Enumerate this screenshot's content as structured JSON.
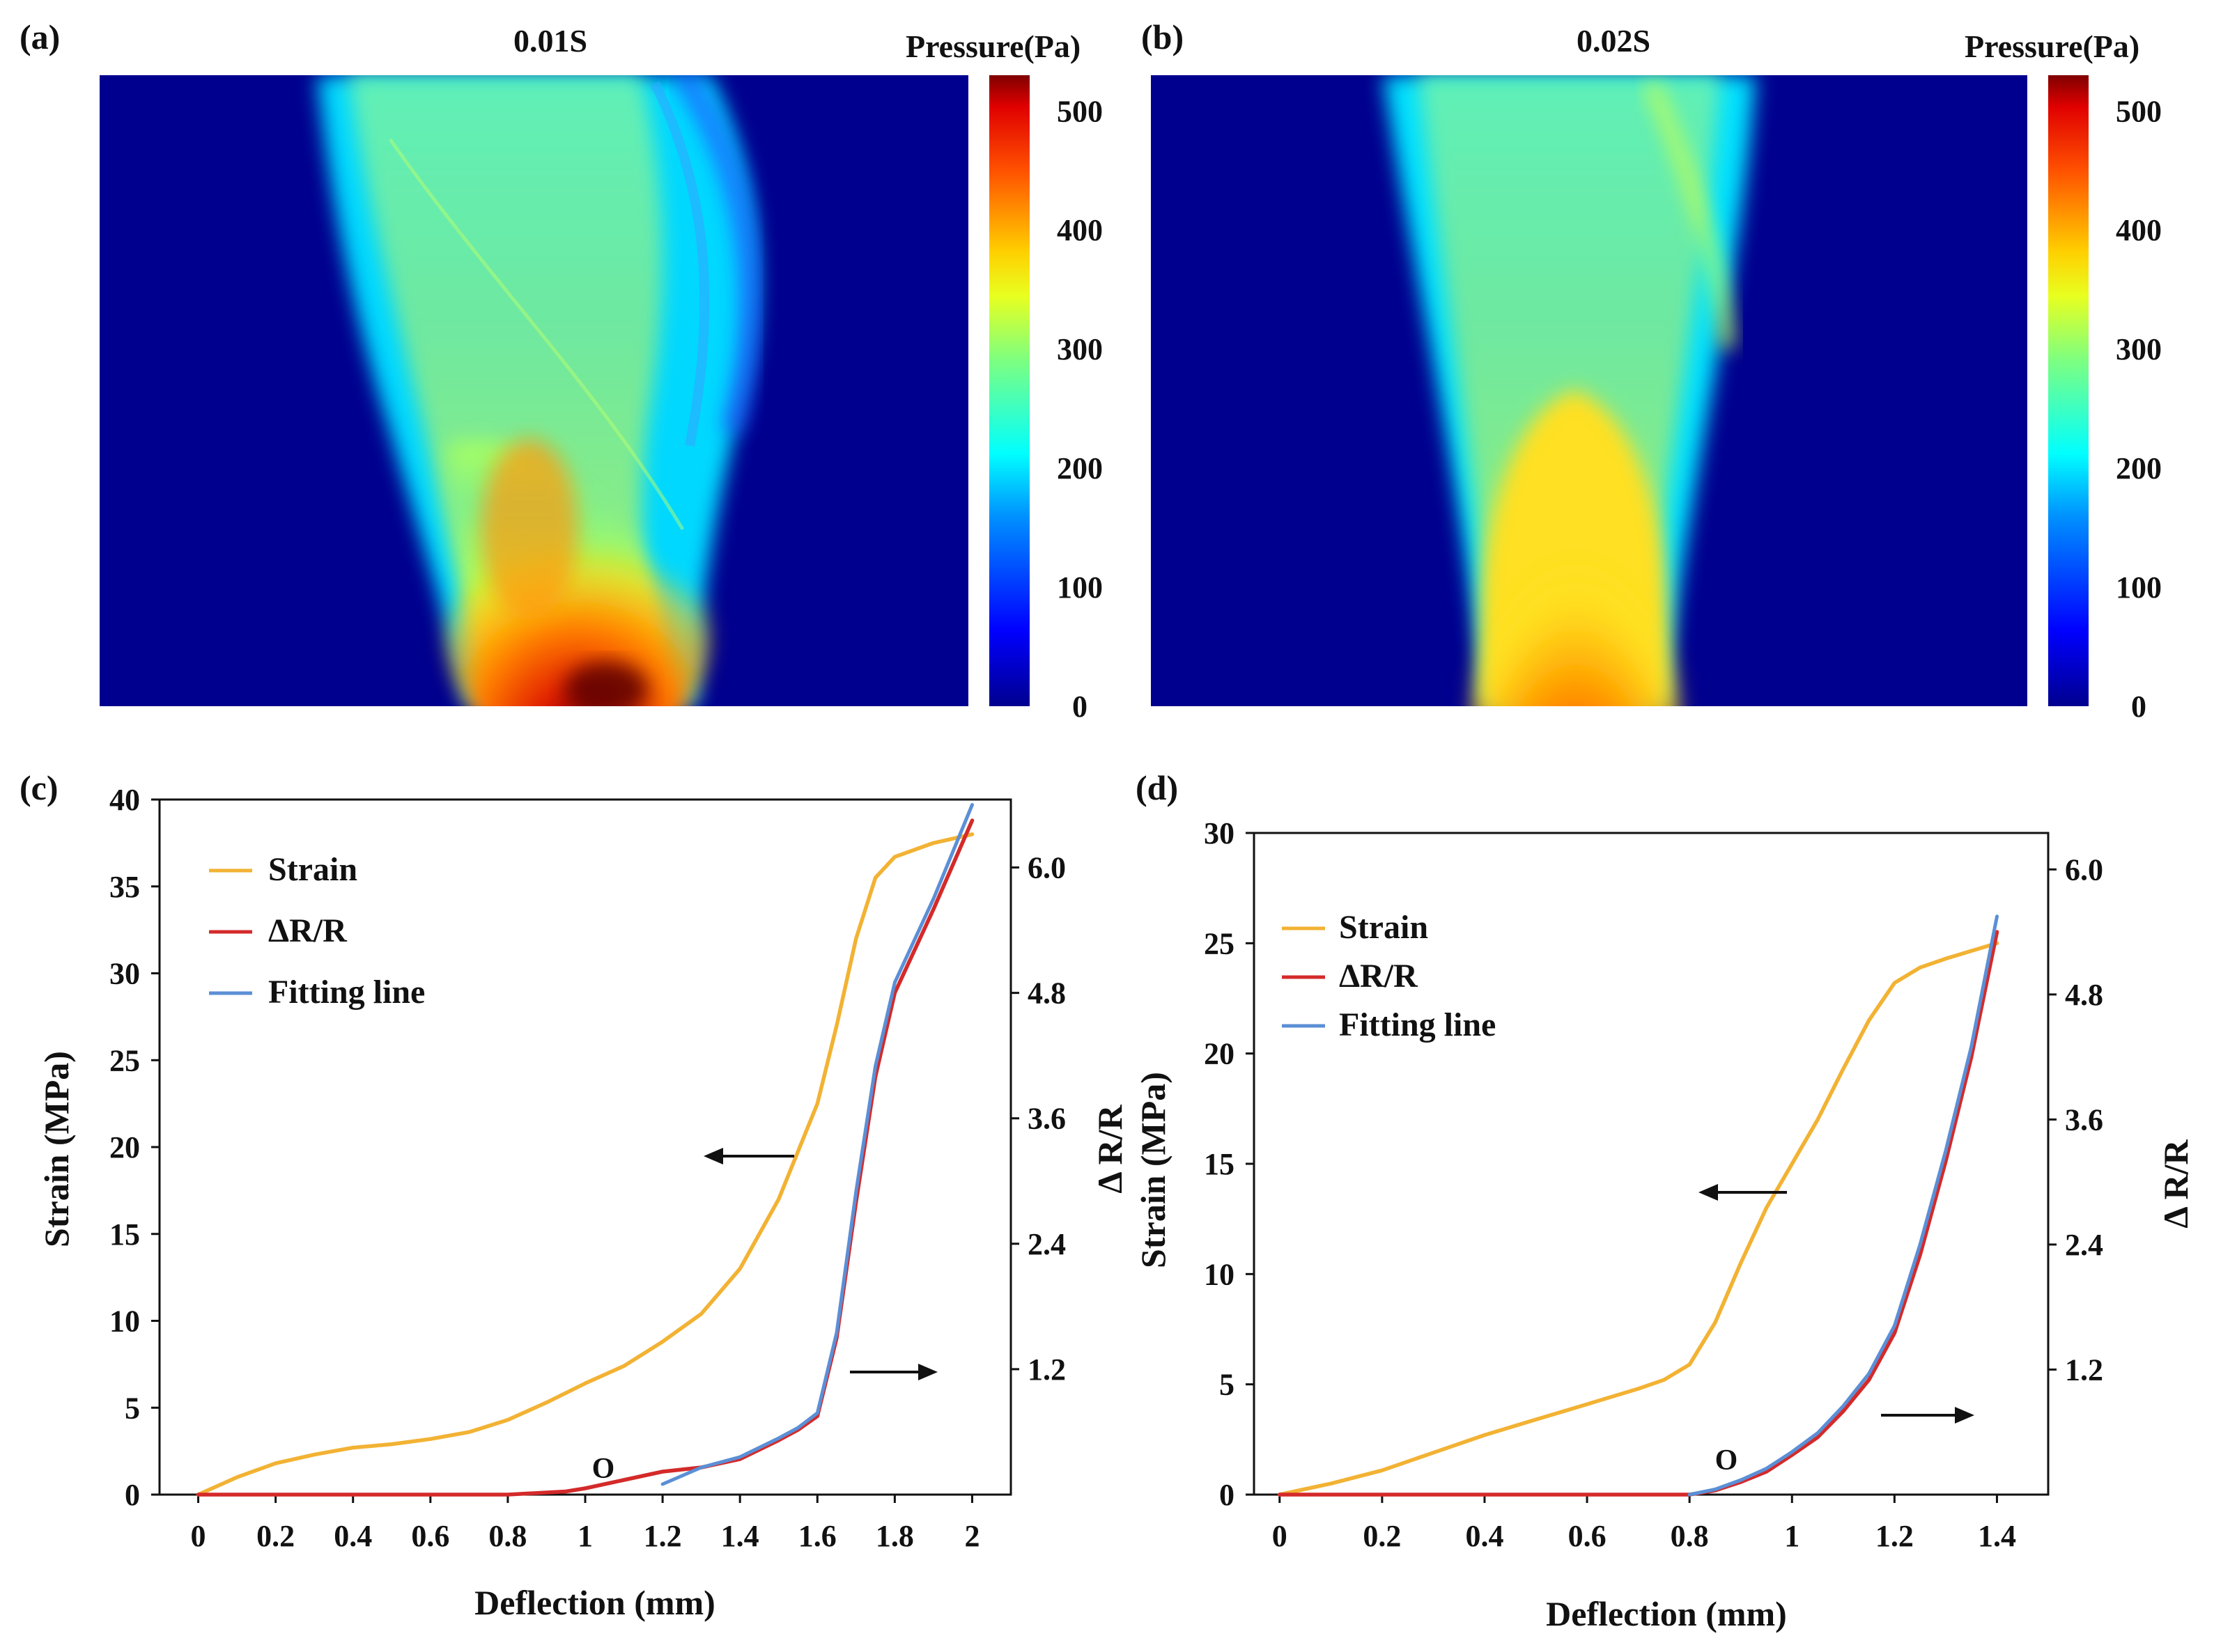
{
  "figure": {
    "panels": {
      "a": "(a)",
      "b": "(b)",
      "c": "(c)",
      "d": "(d)"
    },
    "heatmaps": [
      {
        "id": "a",
        "title": "0.01S",
        "colorbar_title": "Pressure(Pa)",
        "colorbar_ticks": [
          "0",
          "100",
          "200",
          "300",
          "400",
          "500"
        ],
        "range": [
          0,
          530
        ]
      },
      {
        "id": "b",
        "title": "0.02S",
        "colorbar_title": "Pressure(Pa)",
        "colorbar_ticks": [
          "0",
          "100",
          "200",
          "300",
          "400",
          "500"
        ],
        "range": [
          0,
          530
        ]
      }
    ],
    "colors": {
      "strain": "#f2b233",
      "dr": "#d42a2a",
      "fit": "#5b8fd6",
      "map_bg": "#00008e"
    }
  },
  "chart_data": [
    {
      "type": "heatmap",
      "panel": "(a)",
      "title": "0.01S",
      "colorbar_label": "Pressure(Pa)",
      "value_range": [
        0,
        530
      ],
      "colorbar_ticks": [
        0,
        100,
        200,
        300,
        400,
        500
      ]
    },
    {
      "type": "heatmap",
      "panel": "(b)",
      "title": "0.02S",
      "colorbar_label": "Pressure(Pa)",
      "value_range": [
        0,
        530
      ],
      "colorbar_ticks": [
        0,
        100,
        200,
        300,
        400,
        500
      ]
    },
    {
      "type": "line",
      "panel": "(c)",
      "xlabel": "Deflection (mm)",
      "ylabel": "Strain (MPa)",
      "y2label": "Δ R/R",
      "xlim": [
        -0.1,
        2.1
      ],
      "ylim": [
        0,
        40
      ],
      "y2lim": [
        0,
        6.65
      ],
      "xticks": [
        "0",
        "0.2",
        "0.4",
        "0.6",
        "0.8",
        "1",
        "1.2",
        "1.4",
        "1.6",
        "1.8",
        "2"
      ],
      "yticks": [
        "0",
        "5",
        "10",
        "15",
        "20",
        "25",
        "30",
        "35",
        "40"
      ],
      "y2ticks": [
        "1.2",
        "2.4",
        "3.6",
        "4.8",
        "6.0"
      ],
      "annotation": "O",
      "series": [
        {
          "name": "Strain",
          "axis": "left",
          "x": [
            0,
            0.1,
            0.2,
            0.3,
            0.4,
            0.5,
            0.6,
            0.7,
            0.8,
            0.9,
            1.0,
            1.1,
            1.2,
            1.3,
            1.4,
            1.5,
            1.6,
            1.65,
            1.7,
            1.75,
            1.8,
            1.9,
            2.0
          ],
          "y": [
            0,
            1.0,
            1.8,
            2.3,
            2.7,
            2.9,
            3.2,
            3.6,
            4.3,
            5.3,
            6.4,
            7.4,
            8.8,
            10.4,
            13.0,
            17.0,
            22.5,
            27.0,
            32.0,
            35.5,
            36.7,
            37.5,
            38.0
          ]
        },
        {
          "name": "ΔR/R",
          "axis": "right",
          "x": [
            0,
            0.4,
            0.8,
            0.95,
            1.0,
            1.1,
            1.2,
            1.3,
            1.4,
            1.5,
            1.55,
            1.6,
            1.65,
            1.7,
            1.75,
            1.8,
            1.9,
            2.0
          ],
          "y": [
            0,
            0,
            0,
            0.03,
            0.06,
            0.14,
            0.22,
            0.26,
            0.34,
            0.52,
            0.62,
            0.75,
            1.5,
            2.8,
            4.0,
            4.8,
            5.6,
            6.45
          ]
        },
        {
          "name": "Fitting line",
          "axis": "right",
          "x": [
            1.2,
            1.3,
            1.4,
            1.5,
            1.55,
            1.6,
            1.65,
            1.7,
            1.75,
            1.8,
            1.9,
            2.0
          ],
          "y": [
            0.1,
            0.26,
            0.36,
            0.54,
            0.64,
            0.78,
            1.55,
            2.9,
            4.1,
            4.9,
            5.7,
            6.6
          ]
        }
      ]
    },
    {
      "type": "line",
      "panel": "(d)",
      "xlabel": "Deflection (mm)",
      "ylabel": "Strain (MPa)",
      "y2label": "Δ R/R",
      "xlim": [
        -0.05,
        1.5
      ],
      "ylim": [
        0,
        30
      ],
      "y2lim": [
        0.0,
        6.35
      ],
      "xticks": [
        "0",
        "0.2",
        "0.4",
        "0.6",
        "0.8",
        "1",
        "1.2",
        "1.4"
      ],
      "yticks": [
        "0",
        "5",
        "10",
        "15",
        "20",
        "25",
        "30"
      ],
      "y2ticks": [
        "1.2",
        "2.4",
        "3.6",
        "4.8",
        "6.0"
      ],
      "annotation": "O",
      "series": [
        {
          "name": "Strain",
          "axis": "left",
          "x": [
            0,
            0.1,
            0.2,
            0.3,
            0.4,
            0.5,
            0.6,
            0.7,
            0.75,
            0.8,
            0.85,
            0.9,
            0.95,
            1.0,
            1.05,
            1.1,
            1.15,
            1.2,
            1.25,
            1.3,
            1.4
          ],
          "y": [
            0,
            0.5,
            1.1,
            1.9,
            2.7,
            3.4,
            4.1,
            4.8,
            5.2,
            5.9,
            7.8,
            10.5,
            13.0,
            15.0,
            17.0,
            19.3,
            21.5,
            23.2,
            23.9,
            24.3,
            25.0
          ]
        },
        {
          "name": "ΔR/R",
          "axis": "right",
          "x": [
            0,
            0.3,
            0.6,
            0.8,
            0.85,
            0.9,
            0.95,
            1.0,
            1.05,
            1.1,
            1.15,
            1.2,
            1.25,
            1.3,
            1.35,
            1.4
          ],
          "y": [
            0,
            0,
            0,
            0,
            0.04,
            0.12,
            0.22,
            0.38,
            0.55,
            0.8,
            1.1,
            1.55,
            2.3,
            3.2,
            4.2,
            5.4
          ]
        },
        {
          "name": "Fitting line",
          "axis": "right",
          "x": [
            0.8,
            0.85,
            0.9,
            0.95,
            1.0,
            1.05,
            1.1,
            1.15,
            1.2,
            1.25,
            1.3,
            1.35,
            1.4
          ],
          "y": [
            0.0,
            0.05,
            0.14,
            0.25,
            0.41,
            0.59,
            0.85,
            1.16,
            1.62,
            2.4,
            3.3,
            4.3,
            5.55
          ]
        }
      ]
    }
  ]
}
